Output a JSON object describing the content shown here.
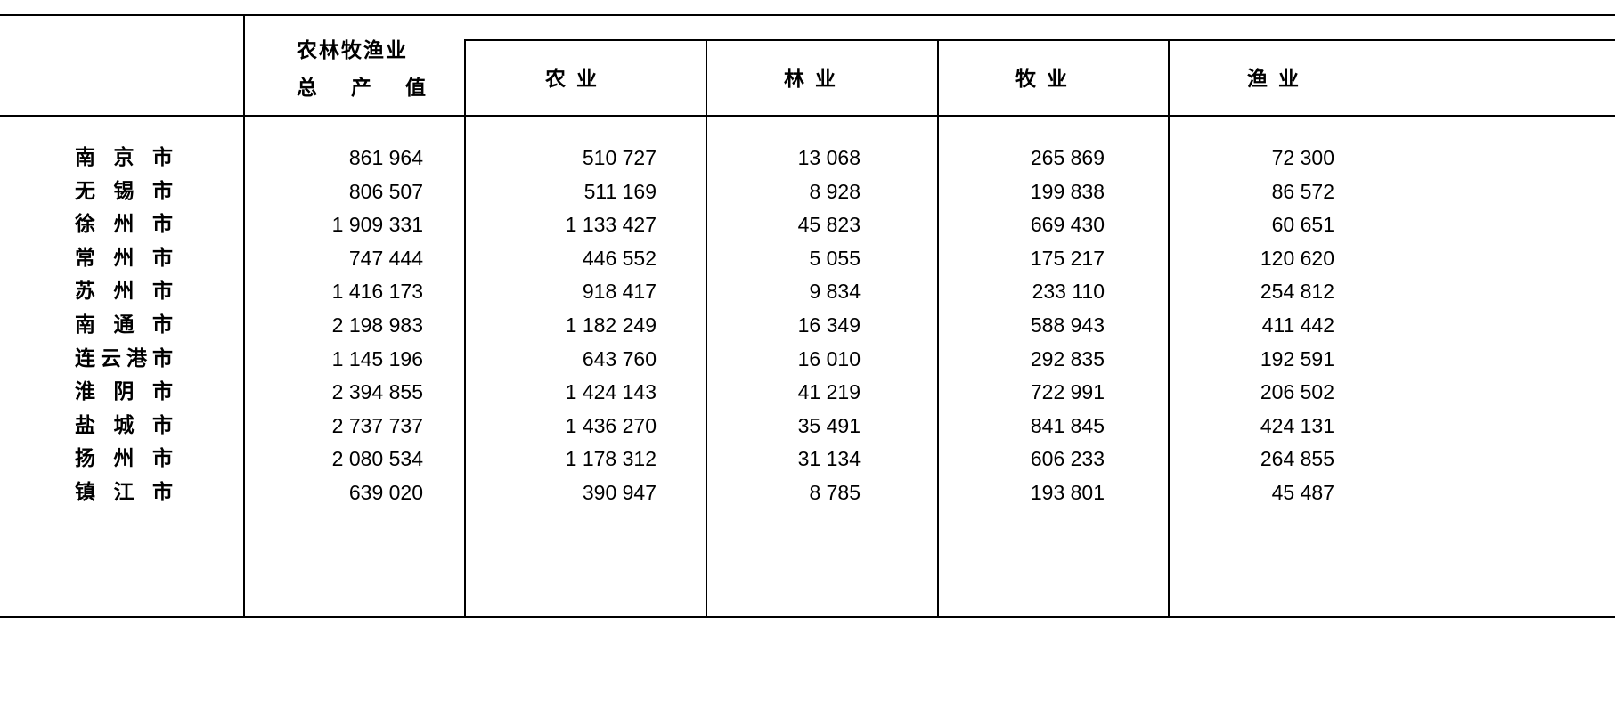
{
  "table": {
    "headers": {
      "total_line1": "农林牧渔业",
      "total_line2": "总 产 值",
      "agriculture": "农 业",
      "forestry": "林 业",
      "animal_husbandry": "牧 业",
      "fishery": "渔 业"
    },
    "rows": [
      {
        "city": "南京市",
        "total": "861 964",
        "agriculture": "510 727",
        "forestry": "13 068",
        "animal_husbandry": "265 869",
        "fishery": "72 300"
      },
      {
        "city": "无锡市",
        "total": "806 507",
        "agriculture": "511 169",
        "forestry": "8 928",
        "animal_husbandry": "199 838",
        "fishery": "86 572"
      },
      {
        "city": "徐州市",
        "total": "1 909 331",
        "agriculture": "1 133 427",
        "forestry": "45 823",
        "animal_husbandry": "669 430",
        "fishery": "60 651"
      },
      {
        "city": "常州市",
        "total": "747 444",
        "agriculture": "446 552",
        "forestry": "5 055",
        "animal_husbandry": "175 217",
        "fishery": "120 620"
      },
      {
        "city": "苏州市",
        "total": "1 416 173",
        "agriculture": "918 417",
        "forestry": "9 834",
        "animal_husbandry": "233 110",
        "fishery": "254 812"
      },
      {
        "city": "南通市",
        "total": "2 198 983",
        "agriculture": "1 182 249",
        "forestry": "16 349",
        "animal_husbandry": "588 943",
        "fishery": "411 442"
      },
      {
        "city": "连云港市",
        "total": "1 145 196",
        "agriculture": "643 760",
        "forestry": "16 010",
        "animal_husbandry": "292 835",
        "fishery": "192 591"
      },
      {
        "city": "淮阴市",
        "total": "2 394 855",
        "agriculture": "1 424 143",
        "forestry": "41 219",
        "animal_husbandry": "722 991",
        "fishery": "206 502"
      },
      {
        "city": "盐城市",
        "total": "2 737 737",
        "agriculture": "1 436 270",
        "forestry": "35 491",
        "animal_husbandry": "841 845",
        "fishery": "424 131"
      },
      {
        "city": "扬州市",
        "total": "2 080 534",
        "agriculture": "1 178 312",
        "forestry": "31 134",
        "animal_husbandry": "606 233",
        "fishery": "264 855"
      },
      {
        "city": "镇江市",
        "total": "639 020",
        "agriculture": "390 947",
        "forestry": "8 785",
        "animal_husbandry": "193 801",
        "fishery": "45 487"
      }
    ]
  }
}
